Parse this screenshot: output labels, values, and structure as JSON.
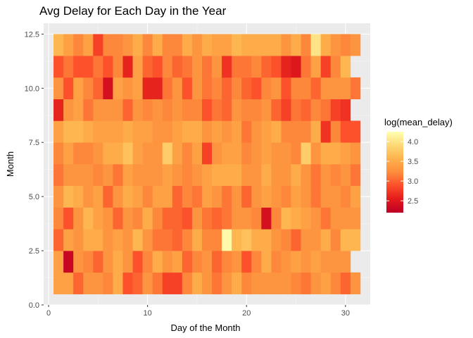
{
  "chart_data": {
    "type": "heatmap",
    "title": "Avg Delay for Each Day in the Year",
    "xlabel": "Day of the Month",
    "ylabel": "Month",
    "xlim": [
      -0.5,
      32.5
    ],
    "ylim": [
      0,
      13
    ],
    "x_ticks": [
      0,
      10,
      20,
      30
    ],
    "y_ticks": [
      0.0,
      2.5,
      5.0,
      7.5,
      10.0,
      12.5
    ],
    "x_tick_labels": [
      "0",
      "10",
      "20",
      "30"
    ],
    "y_tick_labels": [
      "0.0",
      "2.5",
      "5.0",
      "7.5",
      "10.0",
      "12.5"
    ],
    "background": "#ebebeb",
    "grid": true,
    "legend": {
      "title": "log(mean_delay)",
      "position": "right",
      "range": [
        2.2,
        4.25
      ],
      "ticks": [
        2.5,
        3.0,
        3.5,
        4.0
      ],
      "tick_labels": [
        "2.5",
        "3.0",
        "3.5",
        "4.0"
      ],
      "colors_low_to_high": [
        "#bd0026",
        "#e31a1c",
        "#fc4e2a",
        "#fd8d3c",
        "#feb24c",
        "#fed976",
        "#ffffb2"
      ]
    },
    "months": [
      1,
      2,
      3,
      4,
      5,
      6,
      7,
      8,
      9,
      10,
      11,
      12
    ],
    "days": [
      1,
      2,
      3,
      4,
      5,
      6,
      7,
      8,
      9,
      10,
      11,
      12,
      13,
      14,
      15,
      16,
      17,
      18,
      19,
      20,
      21,
      22,
      23,
      24,
      25,
      26,
      27,
      28,
      29,
      30,
      31
    ],
    "values": [
      [
        3.4,
        3.4,
        3.0,
        3.3,
        3.3,
        3.2,
        3.5,
        2.9,
        3.0,
        3.3,
        3.1,
        2.8,
        2.8,
        3.2,
        3.5,
        3.3,
        3.1,
        3.3,
        3.5,
        3.2,
        3.3,
        3.3,
        3.3,
        3.3,
        3.2,
        3.1,
        3.3,
        3.4,
        3.2,
        3.0,
        3.3
      ],
      [
        3.4,
        2.3,
        3.3,
        3.2,
        3.0,
        3.3,
        3.5,
        3.3,
        2.9,
        3.2,
        3.5,
        3.3,
        3.4,
        3.0,
        3.2,
        3.3,
        3.0,
        3.2,
        3.3,
        2.9,
        3.2,
        3.5,
        3.2,
        3.3,
        3.4,
        3.3,
        3.4,
        3.3,
        3.3,
        3.3,
        null
      ],
      [
        3.0,
        3.4,
        3.3,
        3.5,
        3.5,
        3.3,
        3.4,
        3.3,
        3.6,
        3.3,
        3.1,
        3.1,
        3.0,
        3.2,
        3.5,
        3.2,
        3.2,
        4.2,
        3.6,
        3.7,
        3.5,
        3.5,
        3.3,
        3.2,
        3.0,
        3.3,
        3.3,
        3.5,
        3.2,
        3.6,
        3.6
      ],
      [
        3.2,
        2.9,
        3.3,
        3.6,
        3.4,
        3.3,
        3.0,
        3.3,
        3.2,
        3.5,
        3.2,
        3.0,
        3.0,
        2.9,
        3.3,
        3.1,
        3.0,
        3.1,
        3.3,
        3.3,
        3.2,
        2.4,
        3.2,
        3.6,
        3.5,
        3.4,
        3.3,
        3.1,
        3.3,
        3.3,
        3.3
      ],
      [
        3.3,
        3.6,
        3.5,
        3.3,
        3.4,
        3.0,
        3.3,
        3.5,
        3.4,
        3.2,
        3.4,
        3.4,
        3.0,
        3.2,
        3.1,
        3.4,
        3.3,
        3.1,
        3.3,
        3.0,
        3.3,
        3.4,
        3.3,
        3.2,
        3.4,
        3.3,
        3.1,
        3.3,
        3.3,
        3.2,
        3.4
      ],
      [
        3.1,
        3.3,
        3.3,
        3.3,
        3.2,
        3.3,
        3.1,
        3.4,
        3.3,
        3.3,
        3.3,
        3.4,
        3.3,
        3.2,
        3.3,
        3.4,
        3.5,
        3.5,
        3.5,
        3.3,
        3.3,
        3.5,
        3.3,
        3.3,
        3.5,
        3.3,
        3.1,
        3.3,
        3.2,
        3.3,
        3.1
      ],
      [
        3.2,
        3.4,
        3.2,
        3.2,
        3.3,
        3.5,
        3.5,
        3.7,
        3.4,
        3.3,
        3.3,
        3.8,
        3.4,
        3.2,
        3.4,
        2.8,
        3.3,
        3.4,
        3.4,
        3.2,
        3.3,
        3.4,
        3.3,
        3.3,
        3.2,
        3.8,
        3.3,
        3.5,
        3.5,
        3.4,
        3.3
      ],
      [
        3.4,
        3.6,
        3.6,
        3.5,
        3.4,
        3.4,
        3.4,
        3.5,
        3.4,
        3.4,
        3.3,
        3.3,
        3.4,
        3.5,
        3.5,
        3.3,
        3.4,
        3.3,
        3.4,
        3.1,
        3.3,
        3.4,
        3.5,
        3.2,
        3.2,
        3.2,
        3.5,
        2.7,
        3.2,
        2.9,
        2.9
      ],
      [
        2.6,
        3.3,
        3.4,
        3.1,
        3.3,
        3.3,
        3.3,
        3.0,
        3.3,
        3.2,
        3.3,
        3.2,
        3.3,
        3.2,
        3.2,
        2.9,
        3.1,
        3.0,
        3.3,
        3.2,
        3.2,
        3.3,
        3.0,
        2.8,
        3.1,
        3.0,
        3.2,
        3.1,
        2.8,
        2.7,
        null
      ],
      [
        3.3,
        2.9,
        3.4,
        3.2,
        3.0,
        2.4,
        3.4,
        3.3,
        3.4,
        2.6,
        2.6,
        3.1,
        3.3,
        2.9,
        3.3,
        3.1,
        3.2,
        3.0,
        3.2,
        3.0,
        2.9,
        3.2,
        3.3,
        2.9,
        3.2,
        3.2,
        3.0,
        3.3,
        3.3,
        3.3,
        3.1
      ],
      [
        2.9,
        3.1,
        2.9,
        2.9,
        3.1,
        2.9,
        3.2,
        2.6,
        3.4,
        3.0,
        2.9,
        3.2,
        3.0,
        3.1,
        3.3,
        3.1,
        3.3,
        2.7,
        3.1,
        3.1,
        3.2,
        3.0,
        2.9,
        2.6,
        2.5,
        3.1,
        3.4,
        2.8,
        3.2,
        3.6,
        null
      ],
      [
        3.6,
        3.4,
        3.2,
        3.4,
        2.8,
        3.2,
        3.2,
        3.3,
        3.5,
        3.2,
        3.5,
        3.2,
        3.2,
        3.5,
        3.3,
        3.5,
        3.4,
        3.4,
        3.6,
        3.5,
        3.5,
        3.5,
        3.5,
        3.3,
        3.5,
        3.2,
        4.0,
        3.5,
        3.3,
        3.2,
        3.3
      ]
    ]
  }
}
